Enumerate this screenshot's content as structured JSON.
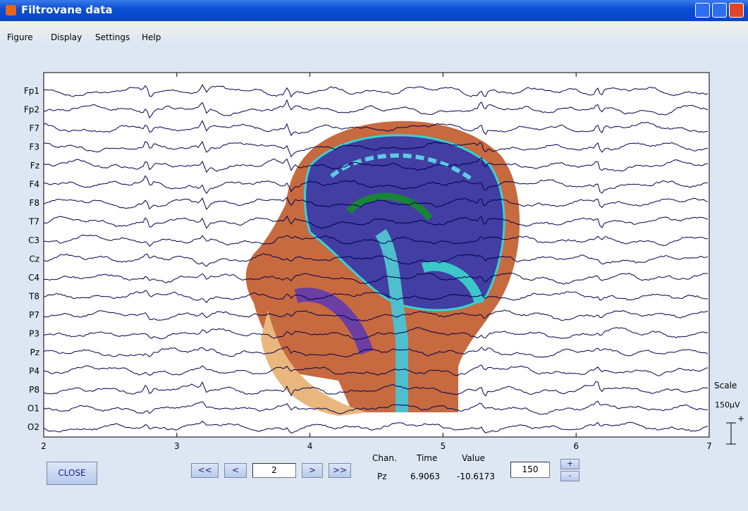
{
  "window": {
    "title": "Filtrovane data"
  },
  "menu": [
    "Figure",
    "Display",
    "Settings",
    "Help"
  ],
  "plot": {
    "channels": [
      "Fp1",
      "Fp2",
      "F7",
      "F3",
      "Fz",
      "F4",
      "F8",
      "T7",
      "C3",
      "Cz",
      "C4",
      "T8",
      "P7",
      "P3",
      "Pz",
      "P4",
      "P8",
      "O1",
      "O2"
    ],
    "xlim": [
      2,
      7
    ],
    "xticks": [
      2,
      3,
      4,
      5,
      6,
      7
    ],
    "scale_title": "Scale",
    "scale_value": "150µV",
    "scale_plus": "+"
  },
  "controls": {
    "close": "CLOSE",
    "first": "<<",
    "prev": "<",
    "page": "2",
    "next": ">",
    "last": ">>",
    "chan_header": "Chan.",
    "time_header": "Time",
    "value_header": "Value",
    "chan": "Pz",
    "time": "6.9063",
    "value": "-10.6173",
    "scale_input": "150",
    "increase": "+",
    "decrease": "-"
  }
}
